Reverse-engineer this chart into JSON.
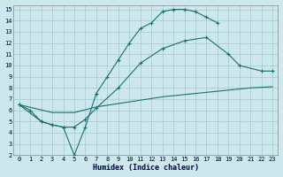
{
  "bg_color": "#cce8ed",
  "grid_color": "#aacdd5",
  "line_color": "#1a7070",
  "xlabel": "Humidex (Indice chaleur)",
  "xlim": [
    -0.5,
    23.5
  ],
  "ylim": [
    2,
    15.4
  ],
  "xticks": [
    0,
    1,
    2,
    3,
    4,
    5,
    6,
    7,
    8,
    9,
    10,
    11,
    12,
    13,
    14,
    15,
    16,
    17,
    18,
    19,
    20,
    21,
    22,
    23
  ],
  "yticks": [
    2,
    3,
    4,
    5,
    6,
    7,
    8,
    9,
    10,
    11,
    12,
    13,
    14,
    15
  ],
  "line1_x": [
    0,
    1,
    2,
    3,
    4,
    5,
    6,
    7,
    8,
    9,
    10,
    11,
    12,
    13,
    14,
    15,
    16,
    17,
    18
  ],
  "line1_y": [
    6.5,
    6.0,
    5.0,
    4.7,
    4.5,
    2.0,
    4.5,
    7.5,
    9.0,
    10.5,
    12.0,
    13.3,
    13.8,
    14.8,
    15.0,
    15.0,
    14.8,
    14.3,
    13.8
  ],
  "line2_x": [
    0,
    2,
    3,
    4,
    5,
    6,
    7,
    9,
    11,
    13,
    15,
    17,
    19,
    20,
    22,
    23
  ],
  "line2_y": [
    6.5,
    5.0,
    4.7,
    4.5,
    4.5,
    5.2,
    6.2,
    8.0,
    10.2,
    11.5,
    12.2,
    12.5,
    11.0,
    10.0,
    9.5,
    9.5
  ],
  "line3_x": [
    0,
    3,
    5,
    7,
    9,
    11,
    13,
    15,
    17,
    19,
    21,
    23
  ],
  "line3_y": [
    6.5,
    5.8,
    5.8,
    6.3,
    6.6,
    6.9,
    7.2,
    7.4,
    7.6,
    7.8,
    8.0,
    8.1
  ]
}
